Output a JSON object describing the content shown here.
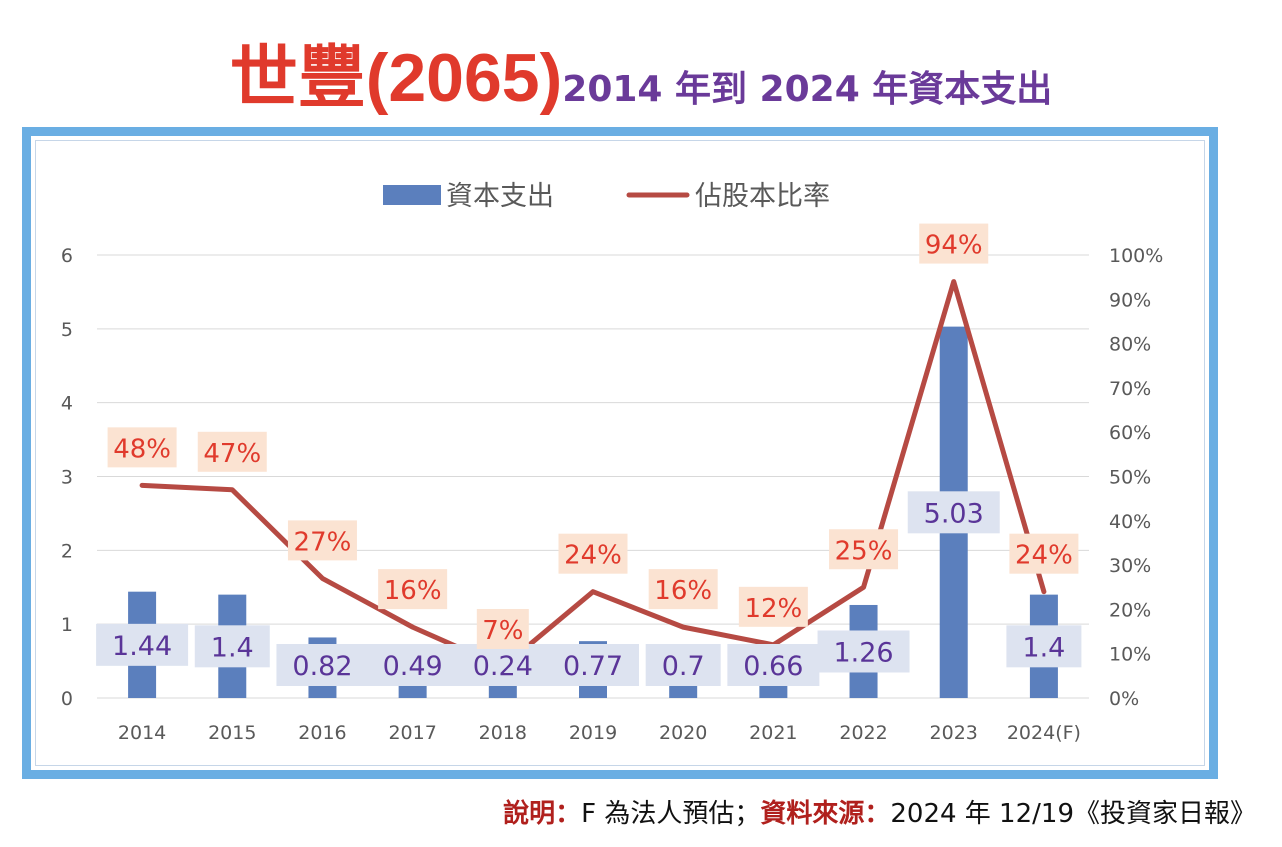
{
  "header": {
    "title_main": "世豐(2065)",
    "title_sub": "2014 年到 2024 年資本支出"
  },
  "chart_data": {
    "type": "bar+line",
    "legend": {
      "placement": "top",
      "bar_label": "資本支出",
      "line_label": "佔股本比率"
    },
    "categories": [
      "2014",
      "2015",
      "2016",
      "2017",
      "2018",
      "2019",
      "2020",
      "2021",
      "2022",
      "2023",
      "2024(F)"
    ],
    "series": [
      {
        "name": "資本支出",
        "type": "bar",
        "axis": "left",
        "values": [
          1.44,
          1.4,
          0.82,
          0.49,
          0.24,
          0.77,
          0.7,
          0.66,
          1.26,
          5.03,
          1.4
        ],
        "labels": [
          "1.44",
          "1.4",
          "0.82",
          "0.49",
          "0.24",
          "0.77",
          "0.7",
          "0.66",
          "1.26",
          "5.03",
          "1.4"
        ]
      },
      {
        "name": "佔股本比率",
        "type": "line",
        "axis": "right",
        "values": [
          48,
          47,
          27,
          16,
          7,
          24,
          16,
          12,
          25,
          94,
          24
        ],
        "labels": [
          "48%",
          "47%",
          "27%",
          "16%",
          "7%",
          "24%",
          "16%",
          "12%",
          "25%",
          "94%",
          "24%"
        ]
      }
    ],
    "y_left": {
      "min": 0,
      "max": 6,
      "ticks": [
        "0",
        "1",
        "2",
        "3",
        "4",
        "5",
        "6"
      ]
    },
    "y_right": {
      "min": 0,
      "max": 100,
      "ticks": [
        "0%",
        "10%",
        "20%",
        "30%",
        "40%",
        "50%",
        "60%",
        "70%",
        "80%",
        "90%",
        "100%"
      ]
    },
    "grid": true,
    "colors": {
      "bar": "#5b7fbd",
      "line": "#b64a43",
      "bar_label_bg": "#dde3f0",
      "bar_label_text": "#5a3598",
      "line_label_bg": "#fbe3d2",
      "line_label_text": "#e03a2c"
    }
  },
  "footnote": {
    "label1": "說明：",
    "text1": "F 為法人預估；",
    "label2": "資料來源：",
    "text2": "2024 年 12/19《投資家日報》"
  }
}
